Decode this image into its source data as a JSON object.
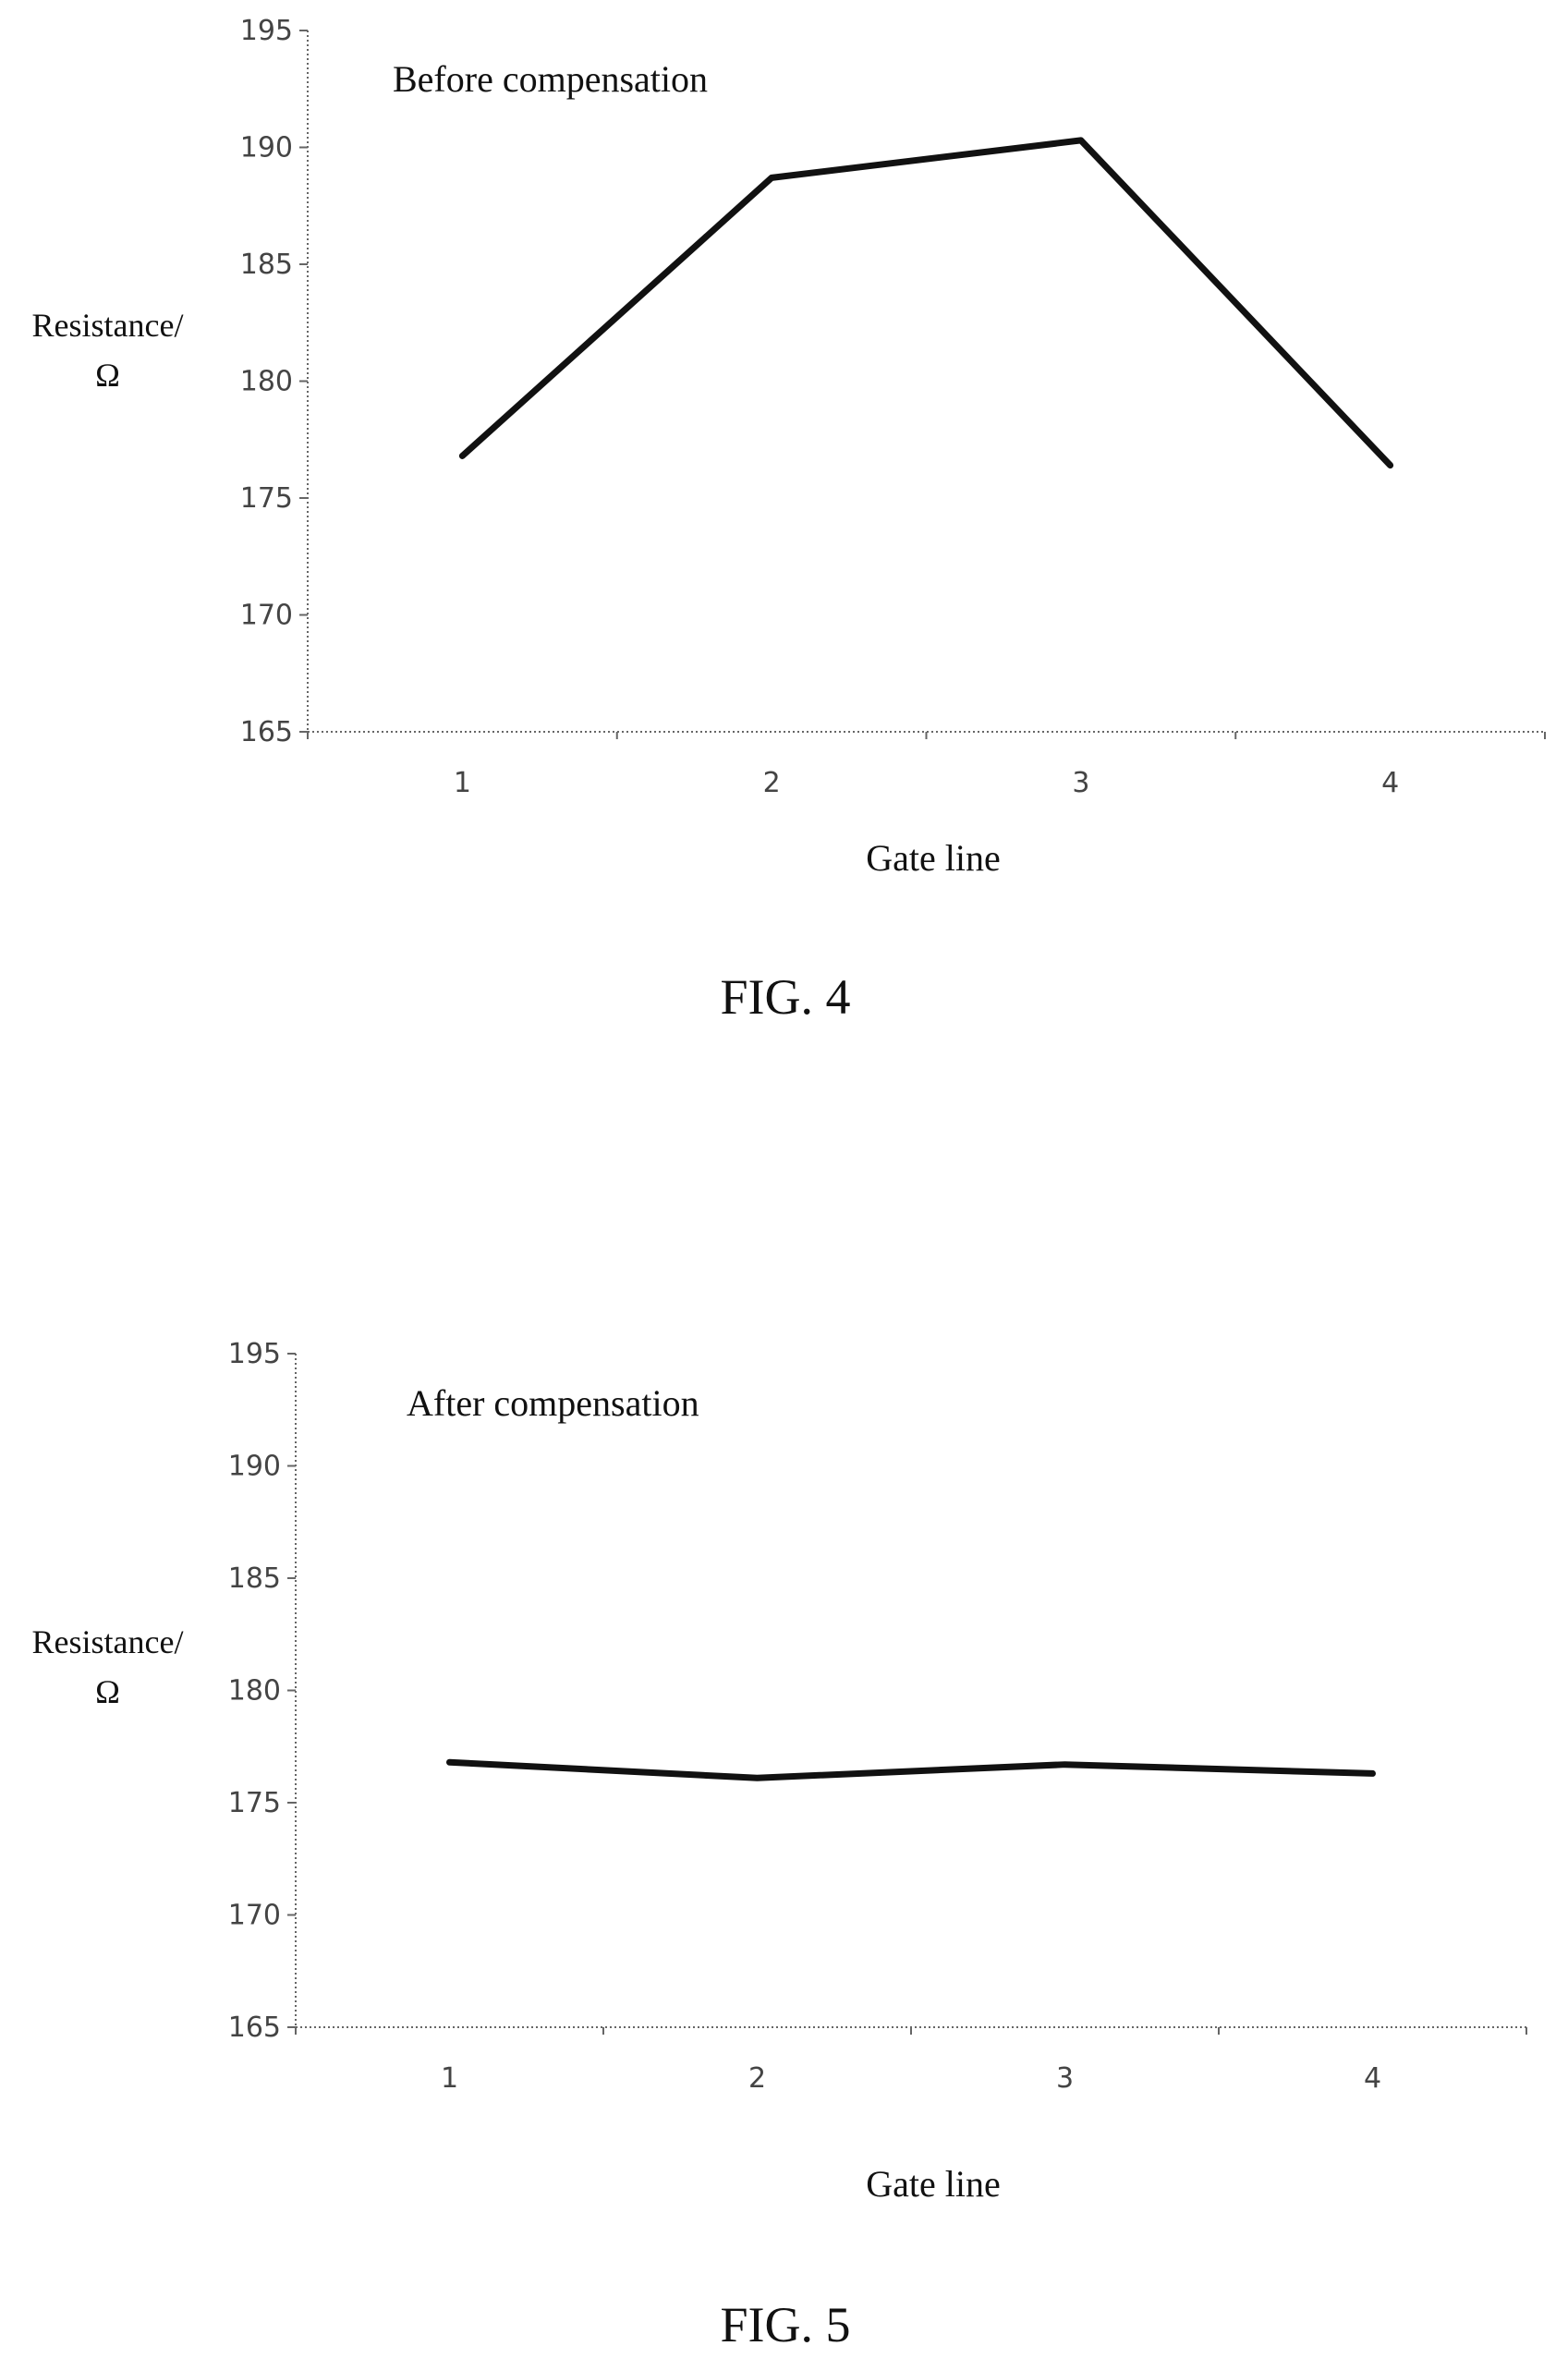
{
  "chart_data": [
    {
      "type": "line",
      "annotation": "Before compensation",
      "caption": "FIG. 4",
      "xlabel": "Gate line",
      "ylabel_line1": "Resistance/",
      "ylabel_line2": "Ω",
      "categories": [
        "1",
        "2",
        "3",
        "4"
      ],
      "ylim": [
        165,
        195
      ],
      "yticks": [
        "195",
        "190",
        "185",
        "180",
        "175",
        "170",
        "165"
      ],
      "series": [
        {
          "values": [
            176.8,
            188.7,
            190.3,
            176.4
          ]
        }
      ],
      "grid": false,
      "line_color": "#111111"
    },
    {
      "type": "line",
      "annotation": "After compensation",
      "caption": "FIG. 5",
      "xlabel": "Gate line",
      "ylabel_line1": "Resistance/",
      "ylabel_line2": "Ω",
      "categories": [
        "1",
        "2",
        "3",
        "4"
      ],
      "ylim": [
        165,
        195
      ],
      "yticks": [
        "195",
        "190",
        "185",
        "180",
        "175",
        "170",
        "165"
      ],
      "series": [
        {
          "values": [
            176.8,
            176.1,
            176.7,
            176.3
          ]
        }
      ],
      "grid": false,
      "line_color": "#111111"
    }
  ]
}
